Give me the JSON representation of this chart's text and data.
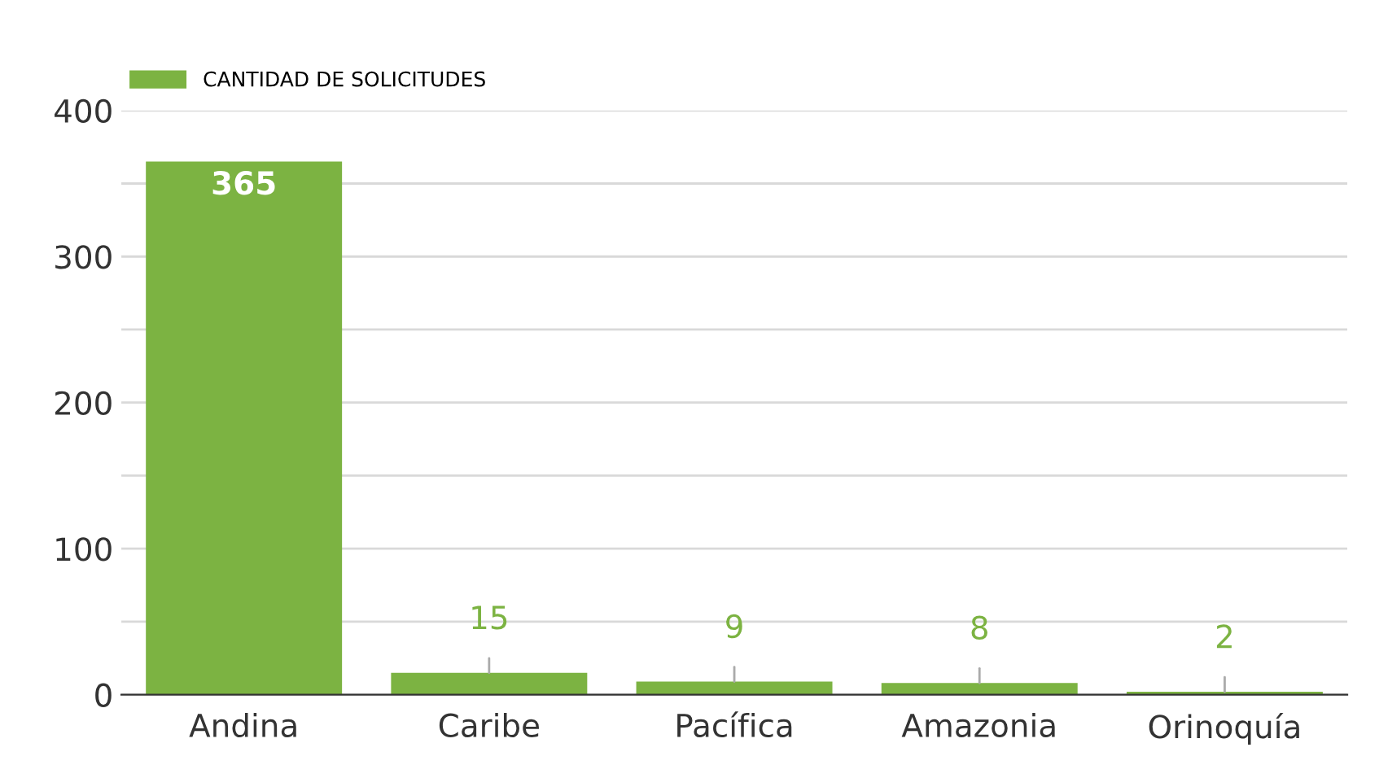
{
  "chart_data": {
    "type": "bar",
    "categories": [
      "Andina",
      "Caribe",
      "Pacífica",
      "Amazonia",
      "Orinoquía"
    ],
    "series": [
      {
        "name": "CANTIDAD DE SOLICITUDES",
        "color": "#7cb342",
        "values": [
          365,
          15,
          9,
          8,
          2
        ]
      }
    ],
    "ylim": [
      0,
      400
    ],
    "yticks": [
      0,
      {
        "value": 50,
        "label": null
      },
      100,
      {
        "value": 150,
        "label": null
      },
      200,
      {
        "value": 250,
        "label": null
      },
      300,
      {
        "value": 350,
        "label": null
      },
      400
    ],
    "grid": "y",
    "legend": "top left",
    "data_labels": true
  }
}
